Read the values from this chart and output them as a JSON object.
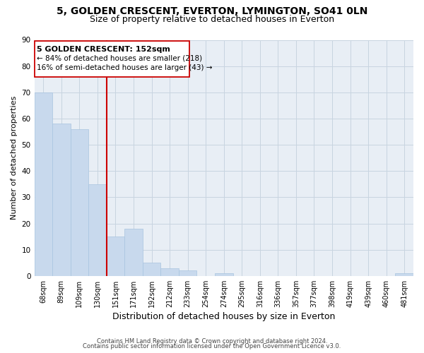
{
  "title1": "5, GOLDEN CRESCENT, EVERTON, LYMINGTON, SO41 0LN",
  "title2": "Size of property relative to detached houses in Everton",
  "xlabel": "Distribution of detached houses by size in Everton",
  "ylabel": "Number of detached properties",
  "bar_labels": [
    "68sqm",
    "89sqm",
    "109sqm",
    "130sqm",
    "151sqm",
    "171sqm",
    "192sqm",
    "212sqm",
    "233sqm",
    "254sqm",
    "274sqm",
    "295sqm",
    "316sqm",
    "336sqm",
    "357sqm",
    "377sqm",
    "398sqm",
    "419sqm",
    "439sqm",
    "460sqm",
    "481sqm"
  ],
  "bar_values": [
    70,
    58,
    56,
    35,
    15,
    18,
    5,
    3,
    2,
    0,
    1,
    0,
    0,
    0,
    0,
    0,
    0,
    0,
    0,
    0,
    1
  ],
  "bar_color": "#c8d9ed",
  "bar_edge_color": "#a8c4e0",
  "vline_x_idx": 4,
  "vline_color": "#cc0000",
  "annotation_line1": "5 GOLDEN CRESCENT: 152sqm",
  "annotation_line2": "← 84% of detached houses are smaller (218)",
  "annotation_line3": "16% of semi-detached houses are larger (43) →",
  "annotation_box_color": "#ffffff",
  "annotation_box_edge": "#cc0000",
  "ylim": [
    0,
    90
  ],
  "yticks": [
    0,
    10,
    20,
    30,
    40,
    50,
    60,
    70,
    80,
    90
  ],
  "footer1": "Contains HM Land Registry data © Crown copyright and database right 2024.",
  "footer2": "Contains public sector information licensed under the Open Government Licence v3.0.",
  "bg_color": "#ffffff",
  "plot_bg_color": "#e8eef5",
  "grid_color": "#c8d4e0",
  "title_fontsize": 10,
  "subtitle_fontsize": 9,
  "axis_label_fontsize": 8,
  "tick_fontsize": 7,
  "footer_fontsize": 6
}
